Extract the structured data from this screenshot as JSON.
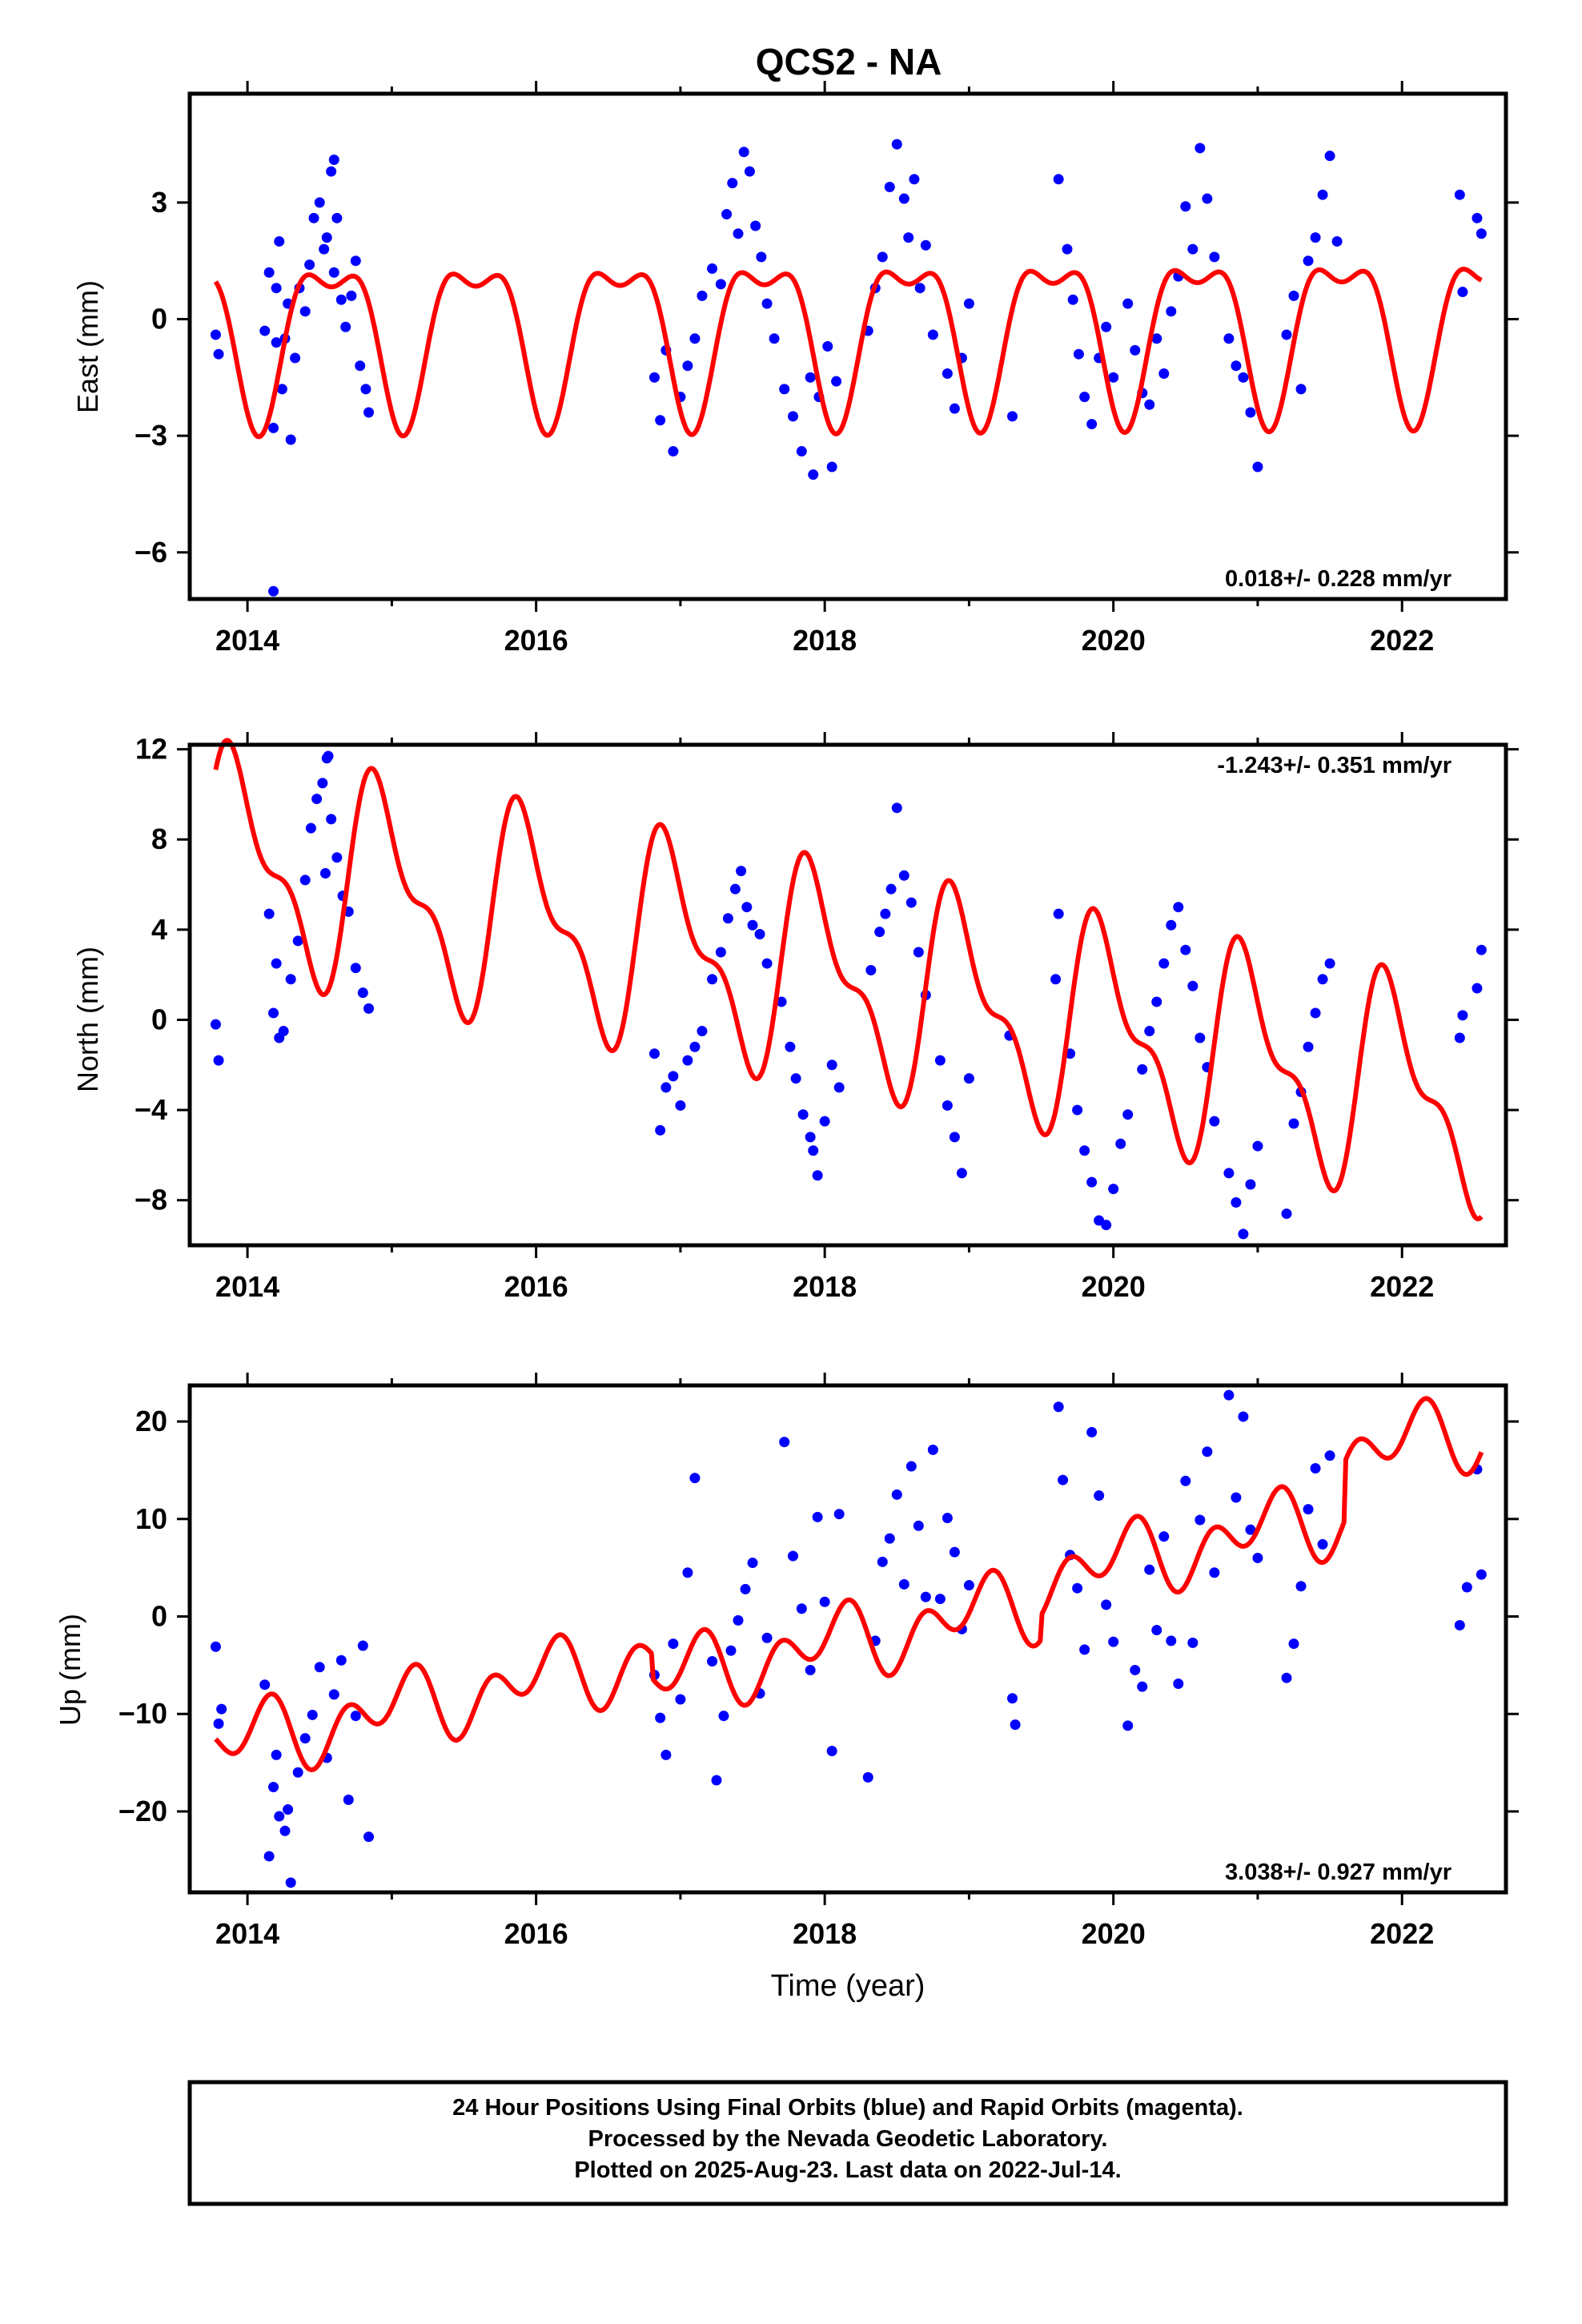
{
  "title": "QCS2 - NA",
  "colors": {
    "points": "#0000ff",
    "fit": "#ff0000",
    "frame": "#000000"
  },
  "xlabel": "Time (year)",
  "chart_data": [
    {
      "type": "scatter",
      "component": "east",
      "ylabel": "East (mm)",
      "xlim": [
        2013.6,
        2022.72
      ],
      "ylim": [
        -7.2,
        5.8
      ],
      "xticks": [
        2014,
        2016,
        2018,
        2020,
        2022
      ],
      "yticks": [
        -6,
        -3,
        0,
        3
      ],
      "ytick_labels": [
        "−6",
        "−3",
        "0",
        "3"
      ],
      "rate_text": "0.018+/- 0.228 mm/yr",
      "rate_position": "bottom-right",
      "grid": false,
      "series": [
        {
          "kind": "points",
          "x": [
            2013.78,
            2013.8,
            2014.12,
            2014.15,
            2014.18,
            2014.2,
            2014.22,
            2014.24,
            2014.28,
            2014.3,
            2014.33,
            2014.36,
            2014.4,
            2014.43,
            2014.46,
            2014.5,
            2014.53,
            2014.55,
            2014.58,
            2014.6,
            2014.62,
            2014.65,
            2014.68,
            2014.72,
            2014.75,
            2014.78,
            2014.82,
            2014.84,
            2014.2,
            2014.26,
            2014.6,
            2014.18,
            2016.82,
            2016.86,
            2016.9,
            2016.95,
            2017.0,
            2017.05,
            2017.1,
            2017.15,
            2017.22,
            2017.28,
            2017.32,
            2017.36,
            2017.4,
            2017.44,
            2017.48,
            2017.52,
            2017.56,
            2017.6,
            2017.65,
            2017.72,
            2017.78,
            2017.84,
            2017.9,
            2017.96,
            2018.02,
            2018.08,
            2017.92,
            2018.05,
            2018.3,
            2018.35,
            2018.4,
            2018.45,
            2018.5,
            2018.55,
            2018.58,
            2018.62,
            2018.66,
            2018.7,
            2018.75,
            2018.85,
            2018.9,
            2018.95,
            2019.0,
            2019.3,
            2019.62,
            2019.68,
            2019.72,
            2019.76,
            2019.8,
            2019.85,
            2019.9,
            2019.95,
            2020.0,
            2020.1,
            2020.15,
            2020.2,
            2020.25,
            2020.3,
            2020.35,
            2020.4,
            2020.45,
            2020.5,
            2020.55,
            2020.6,
            2020.65,
            2020.7,
            2020.8,
            2020.85,
            2020.9,
            2020.95,
            2021.0,
            2021.2,
            2021.25,
            2021.3,
            2021.35,
            2021.4,
            2021.45,
            2021.5,
            2021.55,
            2022.4,
            2022.42,
            2022.52,
            2022.55
          ],
          "y": [
            -0.4,
            -0.9,
            -0.3,
            1.2,
            -2.8,
            -0.6,
            2.0,
            -1.8,
            0.4,
            -3.1,
            -1.0,
            0.8,
            0.2,
            1.4,
            2.6,
            3.0,
            1.8,
            2.1,
            3.8,
            1.2,
            2.6,
            0.5,
            -0.2,
            0.6,
            1.5,
            -1.2,
            -1.8,
            -2.4,
            0.8,
            -0.5,
            4.1,
            -7.0,
            -1.5,
            -2.6,
            -0.8,
            -3.4,
            -2.0,
            -1.2,
            -0.5,
            0.6,
            1.3,
            0.9,
            2.7,
            3.5,
            2.2,
            4.3,
            3.8,
            2.4,
            1.6,
            0.4,
            -0.5,
            -1.8,
            -2.5,
            -3.4,
            -1.5,
            -2.0,
            -0.7,
            -1.6,
            -4.0,
            -3.8,
            -0.3,
            0.8,
            1.6,
            3.4,
            4.5,
            3.1,
            2.1,
            3.6,
            0.8,
            1.9,
            -0.4,
            -1.4,
            -2.3,
            -1.0,
            0.4,
            -2.5,
            3.6,
            1.8,
            0.5,
            -0.9,
            -2.0,
            -2.7,
            -1.0,
            -0.2,
            -1.5,
            0.4,
            -0.8,
            -1.9,
            -2.2,
            -0.5,
            -1.4,
            0.2,
            1.1,
            2.9,
            1.8,
            4.4,
            3.1,
            1.6,
            -0.5,
            -1.2,
            -1.5,
            -2.4,
            -3.8,
            -0.4,
            0.6,
            -1.8,
            1.5,
            2.1,
            3.2,
            4.2,
            2.0,
            3.2,
            0.7,
            2.6,
            2.2
          ]
        },
        {
          "kind": "fit",
          "model": "seasonal",
          "offset": -0.2,
          "trend": 0.018,
          "ref_year": 2018,
          "a1": -0.9,
          "b1": -1.7,
          "a2": -0.7,
          "b2": -0.45,
          "steps": []
        }
      ]
    },
    {
      "type": "scatter",
      "component": "north",
      "ylabel": "North (mm)",
      "xlim": [
        2013.6,
        2022.72
      ],
      "ylim": [
        -10.0,
        12.2
      ],
      "xticks": [
        2014,
        2016,
        2018,
        2020,
        2022
      ],
      "yticks": [
        -8,
        -4,
        0,
        4,
        8,
        12
      ],
      "ytick_labels": [
        "−8",
        "−4",
        "0",
        "4",
        "8",
        "12"
      ],
      "rate_text": "-1.243+/- 0.351 mm/yr",
      "rate_position": "top-right",
      "grid": false,
      "series": [
        {
          "kind": "points",
          "x": [
            2013.78,
            2013.8,
            2014.15,
            2014.18,
            2014.2,
            2014.25,
            2014.3,
            2014.35,
            2014.4,
            2014.44,
            2014.48,
            2014.52,
            2014.55,
            2014.58,
            2014.62,
            2014.66,
            2014.7,
            2014.75,
            2014.8,
            2014.84,
            2014.22,
            2014.56,
            2014.54,
            2016.82,
            2016.86,
            2016.9,
            2016.95,
            2017.0,
            2017.05,
            2017.1,
            2017.15,
            2017.22,
            2017.28,
            2017.33,
            2017.38,
            2017.42,
            2017.46,
            2017.5,
            2017.55,
            2017.6,
            2017.7,
            2017.76,
            2017.8,
            2017.85,
            2017.9,
            2017.95,
            2018.0,
            2018.05,
            2018.1,
            2017.92,
            2018.32,
            2018.38,
            2018.42,
            2018.46,
            2018.5,
            2018.55,
            2018.6,
            2018.65,
            2018.7,
            2018.8,
            2018.85,
            2018.9,
            2018.95,
            2019.0,
            2019.28,
            2019.6,
            2019.62,
            2019.7,
            2019.75,
            2019.8,
            2019.85,
            2019.9,
            2019.95,
            2020.0,
            2020.05,
            2020.1,
            2020.2,
            2020.25,
            2020.3,
            2020.35,
            2020.4,
            2020.45,
            2020.5,
            2020.55,
            2020.6,
            2020.65,
            2020.7,
            2020.8,
            2020.85,
            2020.9,
            2020.95,
            2021.0,
            2021.2,
            2021.25,
            2021.3,
            2021.35,
            2021.4,
            2021.45,
            2021.5,
            2022.4,
            2022.42,
            2022.52,
            2022.55
          ],
          "y": [
            -0.2,
            -1.8,
            4.7,
            0.3,
            2.5,
            -0.5,
            1.8,
            3.5,
            6.2,
            8.5,
            9.8,
            10.5,
            11.6,
            8.9,
            7.2,
            5.5,
            4.8,
            2.3,
            1.2,
            0.5,
            -0.8,
            11.7,
            6.5,
            -1.5,
            -4.9,
            -3.0,
            -2.5,
            -3.8,
            -1.8,
            -1.2,
            -0.5,
            1.8,
            3.0,
            4.5,
            5.8,
            6.6,
            5.0,
            4.2,
            3.8,
            2.5,
            0.8,
            -1.2,
            -2.6,
            -4.2,
            -5.2,
            -6.9,
            -4.5,
            -2.0,
            -3.0,
            -5.8,
            2.2,
            3.9,
            4.7,
            5.8,
            9.4,
            6.4,
            5.2,
            3.0,
            1.1,
            -1.8,
            -3.8,
            -5.2,
            -6.8,
            -2.6,
            -0.7,
            1.8,
            4.7,
            -1.5,
            -4.0,
            -5.8,
            -7.2,
            -8.9,
            -9.1,
            -7.5,
            -5.5,
            -4.2,
            -2.2,
            -0.5,
            0.8,
            2.5,
            4.2,
            5.0,
            3.1,
            1.5,
            -0.8,
            -2.1,
            -4.5,
            -6.8,
            -8.1,
            -9.5,
            -7.3,
            -5.6,
            -8.6,
            -4.6,
            -3.2,
            -1.2,
            0.3,
            1.8,
            2.5,
            -0.8,
            0.2,
            1.4,
            3.1
          ]
        },
        {
          "kind": "fit",
          "model": "seasonal",
          "offset": 1.9,
          "trend": -1.243,
          "ref_year": 2018,
          "a1": -1.6,
          "b1": 3.8,
          "a2": -1.5,
          "b2": -1.2,
          "steps": []
        }
      ]
    },
    {
      "type": "scatter",
      "component": "up",
      "ylabel": "Up (mm)",
      "xlim": [
        2013.6,
        2022.72
      ],
      "ylim": [
        -28.3,
        23.7
      ],
      "xticks": [
        2014,
        2016,
        2018,
        2020,
        2022
      ],
      "yticks": [
        -20,
        -10,
        0,
        10,
        20
      ],
      "ytick_labels": [
        "−20",
        "−10",
        "0",
        "10",
        "20"
      ],
      "rate_text": "3.038+/- 0.927 mm/yr",
      "rate_position": "bottom-right",
      "grid": false,
      "series": [
        {
          "kind": "points",
          "x": [
            2013.78,
            2013.8,
            2013.82,
            2014.12,
            2014.15,
            2014.18,
            2014.2,
            2014.22,
            2014.26,
            2014.3,
            2014.35,
            2014.4,
            2014.45,
            2014.5,
            2014.55,
            2014.6,
            2014.65,
            2014.7,
            2014.75,
            2014.8,
            2014.84,
            2014.28,
            2016.82,
            2016.86,
            2016.9,
            2016.95,
            2017.0,
            2017.05,
            2017.1,
            2017.22,
            2017.25,
            2017.3,
            2017.35,
            2017.4,
            2017.45,
            2017.5,
            2017.55,
            2017.6,
            2017.72,
            2017.78,
            2017.84,
            2017.9,
            2017.95,
            2018.0,
            2018.05,
            2018.1,
            2018.3,
            2018.35,
            2018.4,
            2018.45,
            2018.5,
            2018.55,
            2018.6,
            2018.65,
            2018.7,
            2018.75,
            2018.8,
            2018.85,
            2018.9,
            2018.95,
            2019.0,
            2019.3,
            2019.32,
            2019.62,
            2019.65,
            2019.7,
            2019.75,
            2019.8,
            2019.85,
            2019.9,
            2019.95,
            2020.0,
            2020.1,
            2020.15,
            2020.2,
            2020.25,
            2020.3,
            2020.35,
            2020.4,
            2020.45,
            2020.5,
            2020.55,
            2020.6,
            2020.65,
            2020.7,
            2020.8,
            2020.85,
            2020.9,
            2020.95,
            2021.0,
            2021.2,
            2021.25,
            2021.3,
            2021.35,
            2021.4,
            2021.45,
            2021.5,
            2022.4,
            2022.45,
            2022.52,
            2022.55
          ],
          "y": [
            -3.1,
            -11.0,
            -9.5,
            -7.0,
            -24.6,
            -17.5,
            -14.2,
            -20.5,
            -22.0,
            -27.3,
            -16.0,
            -12.5,
            -10.1,
            -5.2,
            -14.5,
            -8.0,
            -4.5,
            -18.8,
            -10.2,
            -3.0,
            -22.6,
            -19.8,
            -6.0,
            -10.4,
            -14.2,
            -2.8,
            -8.5,
            4.5,
            14.2,
            -4.6,
            -16.8,
            -10.2,
            -3.5,
            -0.4,
            2.8,
            5.5,
            -7.9,
            -2.2,
            17.9,
            6.2,
            0.8,
            -5.5,
            10.2,
            1.5,
            -13.8,
            10.5,
            -16.5,
            -2.5,
            5.6,
            8.0,
            12.5,
            3.3,
            15.4,
            9.3,
            2.0,
            17.1,
            1.8,
            10.1,
            6.6,
            -1.3,
            3.2,
            -8.4,
            -11.1,
            21.5,
            14.0,
            6.3,
            2.9,
            -3.4,
            18.9,
            12.4,
            1.2,
            -2.6,
            -11.2,
            -5.5,
            -7.2,
            4.8,
            -1.4,
            8.2,
            -2.5,
            -6.9,
            13.9,
            -2.7,
            9.9,
            16.9,
            4.5,
            22.7,
            12.2,
            20.5,
            8.9,
            6.0,
            -6.3,
            -2.8,
            3.1,
            11.0,
            15.2,
            7.4,
            16.5,
            -0.9,
            3.0,
            15.1,
            4.3
          ]
        },
        {
          "kind": "fit",
          "model": "seasonal",
          "offset": -0.5,
          "trend": 3.038,
          "ref_year": 2018,
          "a1": 0.6,
          "b1": 2.1,
          "a2": 2.0,
          "b2": -1.8,
          "steps": [
            [
              2016.8,
              -2.5
            ],
            [
              2019.5,
              2.5
            ],
            [
              2021.6,
              6.0
            ]
          ]
        }
      ]
    }
  ],
  "footer": {
    "line1": "24 Hour Positions Using Final Orbits (blue) and Rapid Orbits (magenta).",
    "line2": "Processed by the Nevada Geodetic Laboratory.",
    "line3": "Plotted on 2025-Aug-23. Last data on 2022-Jul-14."
  }
}
